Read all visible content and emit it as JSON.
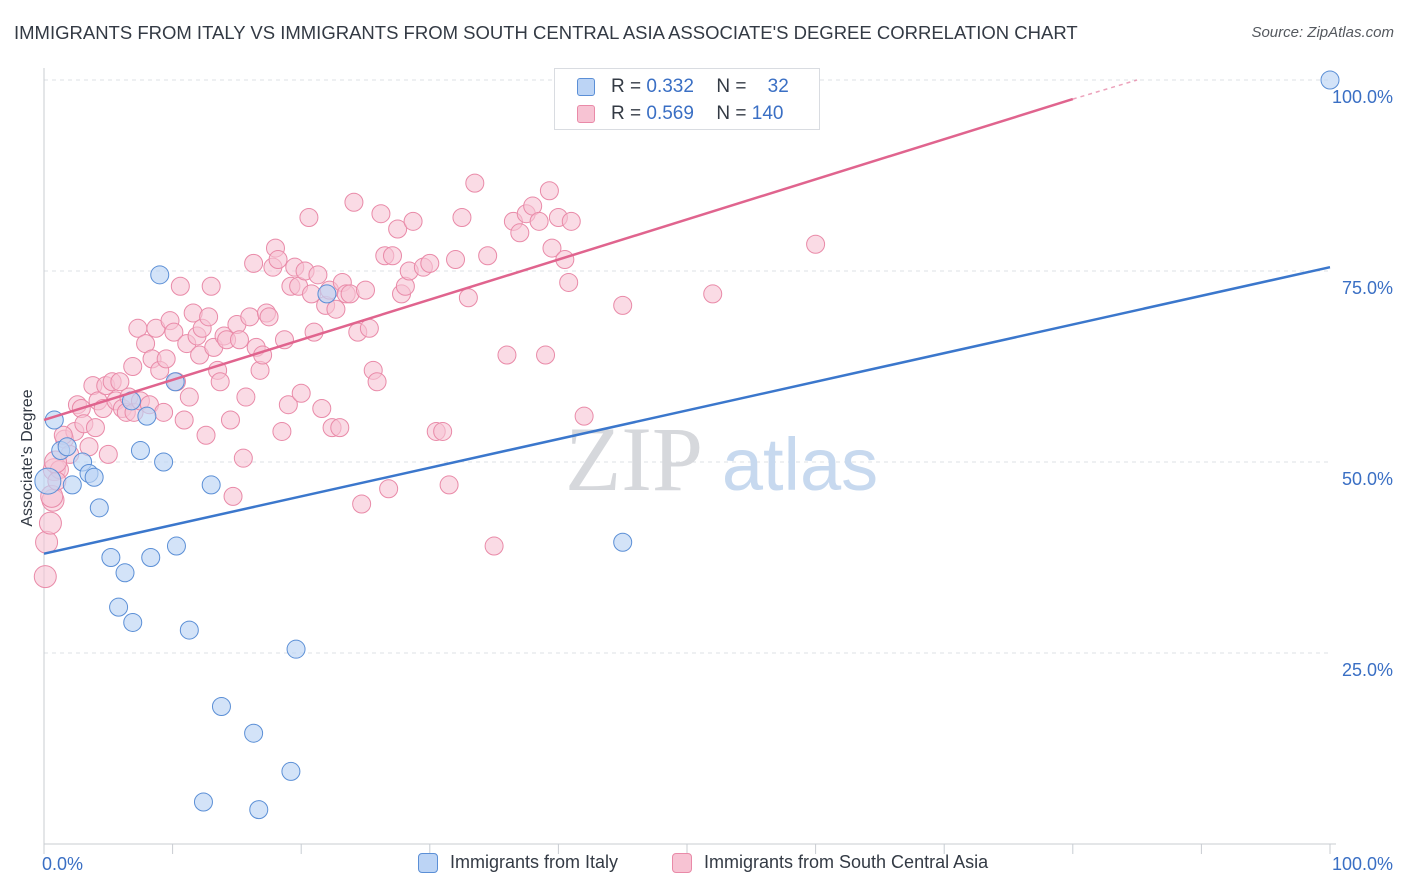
{
  "title": "IMMIGRANTS FROM ITALY VS IMMIGRANTS FROM SOUTH CENTRAL ASIA ASSOCIATE'S DEGREE CORRELATION CHART",
  "source": "Source: ZipAtlas.com",
  "watermark": {
    "zip": "ZIP",
    "atlas": "atlas"
  },
  "colors": {
    "italy_fill": "#bcd4f5",
    "italy_stroke": "#5b8fd6",
    "italy_line": "#3b77cc",
    "sca_fill": "#f7c3d3",
    "sca_stroke": "#e98aa8",
    "sca_line": "#e0648e",
    "grid": "#dde0e5",
    "axis_text": "#3a6fc4"
  },
  "legend": {
    "rows": [
      {
        "r_label": "R =",
        "r_value": "0.332",
        "n_label": "N =",
        "n_value": "32"
      },
      {
        "r_label": "R =",
        "r_value": "0.569",
        "n_label": "N =",
        "n_value": "140"
      }
    ]
  },
  "bottom_legend": [
    "Immigrants from Italy",
    "Immigrants from South Central Asia"
  ],
  "chart_data": {
    "type": "scatter",
    "title": "IMMIGRANTS FROM ITALY VS IMMIGRANTS FROM SOUTH CENTRAL ASIA ASSOCIATE'S DEGREE CORRELATION CHART",
    "xlabel": "",
    "ylabel": "Associate's Degree",
    "xlim": [
      0,
      100
    ],
    "ylim": [
      0,
      100
    ],
    "x_tick_labels": [
      "0.0%",
      "100.0%"
    ],
    "y_ticks": [
      25,
      50,
      75,
      100
    ],
    "y_tick_labels": [
      "25.0%",
      "50.0%",
      "75.0%",
      "100.0%"
    ],
    "grid": true,
    "legend_position": "top-center",
    "series": [
      {
        "name": "Immigrants from Italy",
        "R": 0.332,
        "N": 32,
        "trend": {
          "x": [
            0,
            100
          ],
          "y": [
            38.0,
            75.5
          ]
        },
        "points": [
          [
            0.8,
            55.5
          ],
          [
            1.3,
            51.5
          ],
          [
            1.8,
            52.0
          ],
          [
            2.2,
            47.0
          ],
          [
            3.0,
            50.0
          ],
          [
            3.5,
            48.5
          ],
          [
            3.9,
            48.0
          ],
          [
            4.3,
            44.0
          ],
          [
            6.8,
            58.0
          ],
          [
            5.2,
            37.5
          ],
          [
            6.3,
            35.5
          ],
          [
            5.8,
            31.0
          ],
          [
            6.9,
            29.0
          ],
          [
            7.5,
            51.5
          ],
          [
            8.0,
            56.0
          ],
          [
            8.3,
            37.5
          ],
          [
            9.0,
            74.5
          ],
          [
            9.3,
            50.0
          ],
          [
            10.2,
            60.5
          ],
          [
            10.3,
            39.0
          ],
          [
            11.3,
            28.0
          ],
          [
            13.0,
            47.0
          ],
          [
            13.8,
            18.0
          ],
          [
            16.3,
            14.5
          ],
          [
            19.2,
            9.5
          ],
          [
            19.6,
            25.5
          ],
          [
            12.4,
            5.5
          ],
          [
            16.7,
            4.5
          ],
          [
            22.0,
            72.0
          ],
          [
            45.0,
            39.5
          ],
          [
            100.0,
            100.0
          ],
          [
            0.3,
            47.5
          ]
        ]
      },
      {
        "name": "Immigrants from South Central Asia",
        "R": 0.569,
        "N": 140,
        "trend": {
          "x": [
            0,
            80
          ],
          "y": [
            55.5,
            97.5
          ]
        },
        "trend_dashed": {
          "x": [
            80,
            85
          ],
          "y": [
            97.5,
            100.0
          ]
        },
        "points": [
          [
            0.1,
            35.0
          ],
          [
            0.2,
            39.5
          ],
          [
            0.5,
            42.0
          ],
          [
            0.7,
            45.0
          ],
          [
            0.8,
            49.0
          ],
          [
            1.2,
            49.0
          ],
          [
            1.6,
            53.0
          ],
          [
            2.0,
            51.0
          ],
          [
            2.4,
            54.0
          ],
          [
            2.6,
            57.5
          ],
          [
            2.9,
            57.0
          ],
          [
            3.1,
            55.0
          ],
          [
            3.5,
            52.0
          ],
          [
            3.8,
            60.0
          ],
          [
            4.0,
            54.5
          ],
          [
            4.2,
            58.0
          ],
          [
            4.6,
            57.0
          ],
          [
            4.8,
            60.0
          ],
          [
            5.0,
            51.0
          ],
          [
            5.3,
            60.5
          ],
          [
            5.6,
            58.0
          ],
          [
            5.9,
            60.5
          ],
          [
            6.1,
            57.0
          ],
          [
            6.4,
            56.5
          ],
          [
            6.6,
            58.5
          ],
          [
            6.9,
            62.5
          ],
          [
            7.0,
            56.5
          ],
          [
            7.3,
            67.5
          ],
          [
            7.5,
            58.0
          ],
          [
            7.9,
            65.5
          ],
          [
            8.2,
            57.5
          ],
          [
            8.4,
            63.5
          ],
          [
            8.7,
            67.5
          ],
          [
            9.0,
            62.0
          ],
          [
            9.3,
            56.5
          ],
          [
            9.5,
            63.5
          ],
          [
            9.8,
            68.5
          ],
          [
            10.1,
            67.0
          ],
          [
            10.3,
            60.5
          ],
          [
            10.6,
            73.0
          ],
          [
            10.9,
            55.5
          ],
          [
            11.1,
            65.5
          ],
          [
            11.3,
            58.5
          ],
          [
            11.6,
            69.5
          ],
          [
            11.9,
            66.5
          ],
          [
            12.1,
            64.0
          ],
          [
            12.3,
            67.5
          ],
          [
            12.6,
            53.5
          ],
          [
            12.8,
            69.0
          ],
          [
            13.0,
            73.0
          ],
          [
            13.2,
            65.0
          ],
          [
            13.5,
            62.0
          ],
          [
            13.7,
            60.5
          ],
          [
            14.0,
            66.5
          ],
          [
            14.2,
            66.0
          ],
          [
            14.5,
            55.5
          ],
          [
            14.7,
            45.5
          ],
          [
            15.0,
            68.0
          ],
          [
            15.2,
            66.0
          ],
          [
            15.5,
            50.5
          ],
          [
            15.7,
            58.5
          ],
          [
            16.0,
            69.0
          ],
          [
            16.3,
            76.0
          ],
          [
            16.5,
            65.0
          ],
          [
            16.8,
            62.0
          ],
          [
            17.0,
            64.0
          ],
          [
            17.3,
            69.5
          ],
          [
            17.5,
            69.0
          ],
          [
            17.8,
            75.5
          ],
          [
            18.0,
            78.0
          ],
          [
            18.2,
            76.5
          ],
          [
            18.5,
            54.0
          ],
          [
            18.7,
            66.0
          ],
          [
            19.0,
            57.5
          ],
          [
            19.2,
            73.0
          ],
          [
            19.5,
            75.5
          ],
          [
            19.8,
            73.0
          ],
          [
            20.0,
            59.0
          ],
          [
            20.3,
            75.0
          ],
          [
            20.6,
            82.0
          ],
          [
            20.8,
            72.0
          ],
          [
            21.0,
            67.0
          ],
          [
            21.3,
            74.5
          ],
          [
            21.6,
            57.0
          ],
          [
            21.9,
            70.5
          ],
          [
            22.2,
            72.5
          ],
          [
            22.4,
            54.5
          ],
          [
            22.7,
            70.0
          ],
          [
            23.0,
            54.5
          ],
          [
            23.2,
            73.5
          ],
          [
            23.5,
            72.0
          ],
          [
            23.8,
            72.0
          ],
          [
            24.1,
            84.0
          ],
          [
            24.4,
            67.0
          ],
          [
            24.7,
            44.5
          ],
          [
            25.0,
            72.5
          ],
          [
            25.3,
            67.5
          ],
          [
            25.6,
            62.0
          ],
          [
            25.9,
            60.5
          ],
          [
            26.2,
            82.5
          ],
          [
            26.5,
            77.0
          ],
          [
            26.8,
            46.5
          ],
          [
            27.1,
            77.0
          ],
          [
            27.5,
            80.5
          ],
          [
            27.8,
            72.0
          ],
          [
            28.1,
            73.0
          ],
          [
            28.4,
            75.0
          ],
          [
            28.7,
            81.5
          ],
          [
            29.5,
            75.5
          ],
          [
            30.0,
            76.0
          ],
          [
            30.5,
            54.0
          ],
          [
            31.0,
            54.0
          ],
          [
            31.5,
            47.0
          ],
          [
            32.0,
            76.5
          ],
          [
            32.5,
            82.0
          ],
          [
            33.0,
            71.5
          ],
          [
            33.5,
            86.5
          ],
          [
            34.5,
            77.0
          ],
          [
            36.0,
            64.0
          ],
          [
            36.5,
            81.5
          ],
          [
            37.0,
            80.0
          ],
          [
            37.5,
            82.5
          ],
          [
            38.0,
            83.5
          ],
          [
            38.5,
            81.5
          ],
          [
            39.0,
            64.0
          ],
          [
            39.5,
            78.0
          ],
          [
            40.0,
            82.0
          ],
          [
            40.5,
            76.5
          ],
          [
            40.8,
            73.5
          ],
          [
            41.0,
            81.5
          ],
          [
            42.0,
            56.0
          ],
          [
            39.3,
            85.5
          ],
          [
            35.0,
            39.0
          ],
          [
            45.0,
            70.5
          ],
          [
            52.0,
            72.0
          ],
          [
            60.0,
            78.5
          ],
          [
            0.6,
            45.5
          ],
          [
            1.0,
            47.5
          ],
          [
            1.5,
            53.5
          ],
          [
            0.9,
            50.0
          ]
        ]
      }
    ]
  }
}
